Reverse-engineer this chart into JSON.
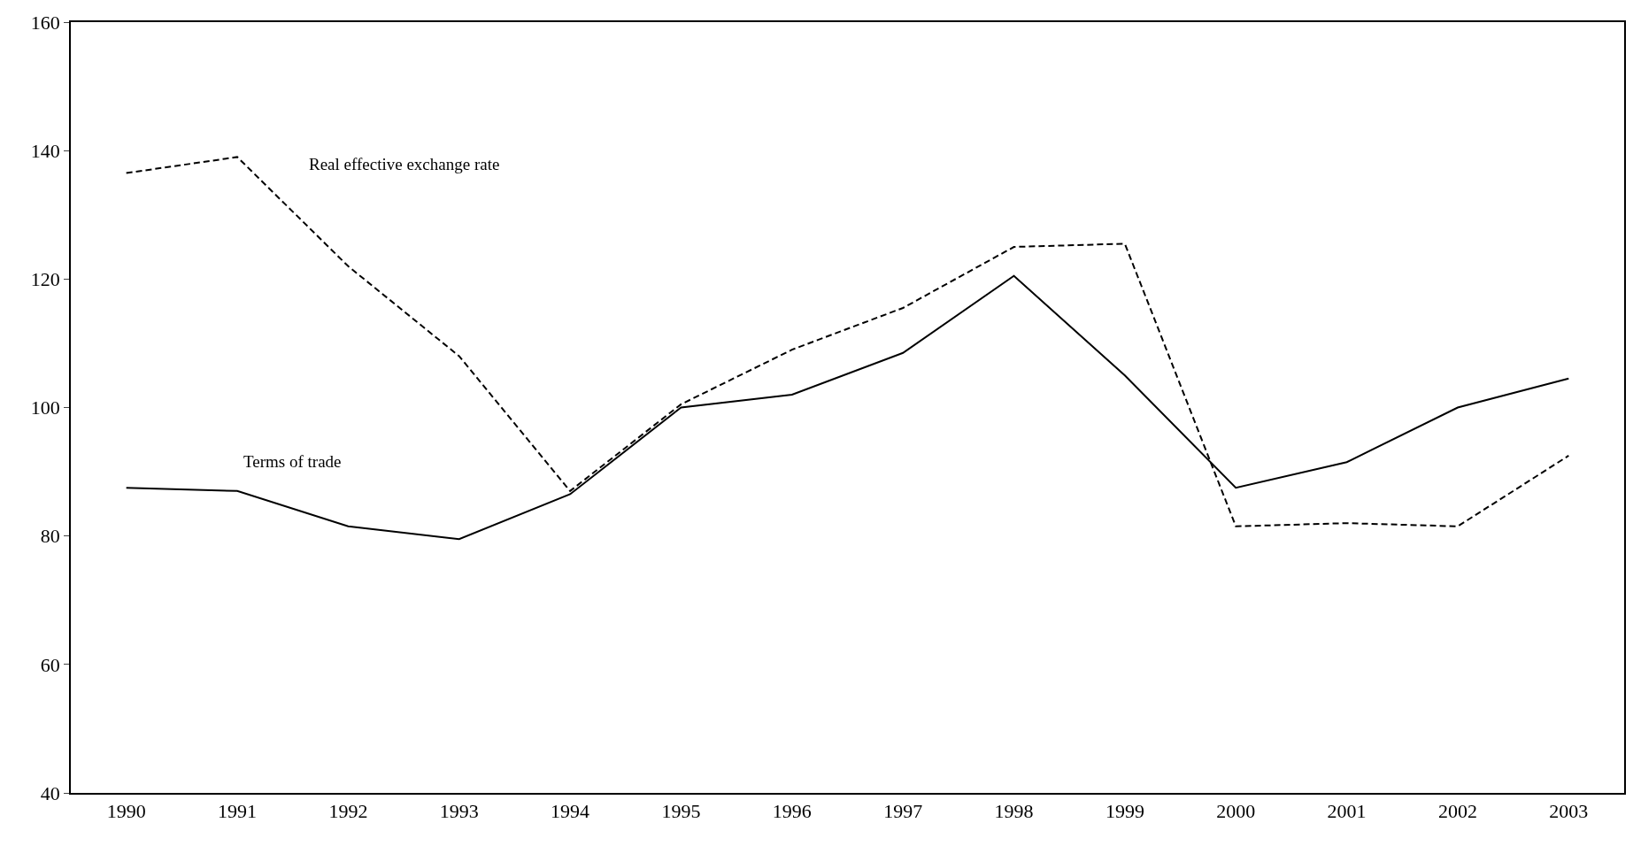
{
  "chart_data": {
    "type": "line",
    "categories": [
      "1990",
      "1991",
      "1992",
      "1993",
      "1994",
      "1995",
      "1996",
      "1997",
      "1998",
      "1999",
      "2000",
      "2001",
      "2002",
      "2003"
    ],
    "series": [
      {
        "name": "Real effective exchange rate",
        "color": "#000000",
        "line_style": "dashed",
        "values": [
          136.5,
          139,
          122,
          108,
          87,
          100.5,
          109,
          115.5,
          125,
          125.5,
          81.5,
          82,
          81.5,
          92.5
        ]
      },
      {
        "name": "Terms of trade",
        "color": "#000000",
        "line_style": "solid",
        "values": [
          87.5,
          87,
          81.5,
          79.5,
          86.5,
          100,
          102,
          108.5,
          120.5,
          105,
          87.5,
          91.5,
          100,
          104.5
        ]
      }
    ],
    "ylim": [
      40,
      160
    ],
    "yticks": [
      40,
      60,
      80,
      100,
      120,
      140,
      160
    ],
    "grid": false,
    "legend": false,
    "marker": "none"
  }
}
